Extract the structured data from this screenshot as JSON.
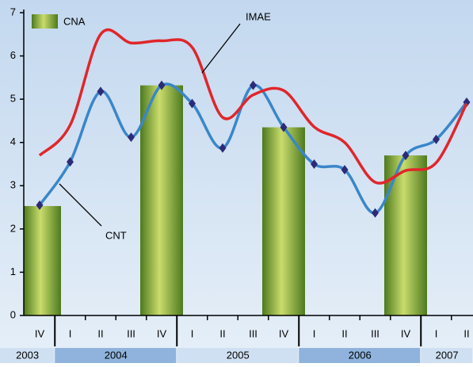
{
  "chart_data": {
    "type": "bar",
    "groups": [
      {
        "label": "2003",
        "categories": [
          "IV"
        ]
      },
      {
        "label": "2004",
        "categories": [
          "I",
          "II",
          "III",
          "IV"
        ]
      },
      {
        "label": "2005",
        "categories": [
          "I",
          "II",
          "III",
          "IV"
        ]
      },
      {
        "label": "2006",
        "categories": [
          "I",
          "II",
          "III",
          "IV"
        ]
      },
      {
        "label": "2007",
        "categories": [
          "I",
          "II"
        ]
      }
    ],
    "series": [
      {
        "name": "CNA",
        "type": "bar",
        "color": "#7fa63a",
        "values": [
          2.53,
          null,
          null,
          null,
          5.32,
          null,
          null,
          null,
          4.35,
          null,
          null,
          null,
          3.7,
          null,
          null
        ]
      },
      {
        "name": "CNT",
        "type": "line",
        "color": "#3a86c8",
        "marker_color": "#2b2b78",
        "values": [
          2.55,
          3.55,
          5.18,
          4.12,
          5.32,
          4.9,
          3.87,
          5.32,
          4.35,
          3.5,
          3.37,
          2.37,
          3.7,
          4.07,
          4.93
        ]
      },
      {
        "name": "IMAE",
        "type": "line",
        "color": "#e0262b",
        "values": [
          3.7,
          4.4,
          6.5,
          6.3,
          6.35,
          6.2,
          4.58,
          5.1,
          5.2,
          4.36,
          4.0,
          3.08,
          3.35,
          3.53,
          4.9
        ]
      }
    ],
    "annotations": [
      "IMAE",
      "CNT"
    ],
    "ylim": [
      0,
      7
    ],
    "yticks": [
      0,
      1,
      2,
      3,
      4,
      5,
      6,
      7
    ]
  }
}
